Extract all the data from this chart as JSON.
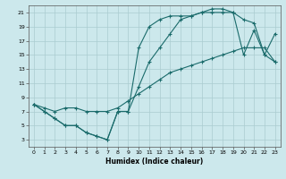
{
  "xlabel": "Humidex (Indice chaleur)",
  "bg_color": "#cce8ec",
  "grid_color": "#aaccd0",
  "line_color": "#1a6b6b",
  "xlim": [
    -0.5,
    23.5
  ],
  "ylim": [
    2,
    22
  ],
  "xticks": [
    0,
    1,
    2,
    3,
    4,
    5,
    6,
    7,
    8,
    9,
    10,
    11,
    12,
    13,
    14,
    15,
    16,
    17,
    18,
    19,
    20,
    21,
    22,
    23
  ],
  "yticks": [
    3,
    5,
    7,
    9,
    11,
    13,
    15,
    17,
    19,
    21
  ],
  "line1_x": [
    0,
    1,
    2,
    3,
    4,
    5,
    6,
    7,
    8,
    9,
    10,
    11,
    12,
    13,
    14,
    15,
    16,
    17,
    18,
    19,
    20,
    21,
    22,
    23
  ],
  "line1_y": [
    8,
    7,
    6,
    5,
    5,
    4,
    3.5,
    3,
    7,
    7,
    16,
    19,
    20,
    20.5,
    20.5,
    20.5,
    21,
    21.5,
    21.5,
    21,
    15,
    18.5,
    15,
    14
  ],
  "line2_x": [
    0,
    1,
    2,
    3,
    4,
    5,
    6,
    7,
    8,
    9,
    10,
    11,
    12,
    13,
    14,
    15,
    16,
    17,
    18,
    19,
    20,
    21,
    22,
    23
  ],
  "line2_y": [
    8,
    7,
    6,
    5,
    5,
    4,
    3.5,
    3,
    7,
    7,
    10.5,
    14,
    16,
    18,
    20,
    20.5,
    21,
    21,
    21,
    21,
    20,
    19.5,
    15,
    18
  ],
  "line3_x": [
    0,
    1,
    2,
    3,
    4,
    5,
    6,
    7,
    8,
    9,
    10,
    11,
    12,
    13,
    14,
    15,
    16,
    17,
    18,
    19,
    20,
    21,
    22,
    23
  ],
  "line3_y": [
    8,
    7.5,
    7,
    7.5,
    7.5,
    7,
    7,
    7,
    7.5,
    8.5,
    9.5,
    10.5,
    11.5,
    12.5,
    13,
    13.5,
    14,
    14.5,
    15,
    15.5,
    16,
    16,
    16,
    14
  ]
}
